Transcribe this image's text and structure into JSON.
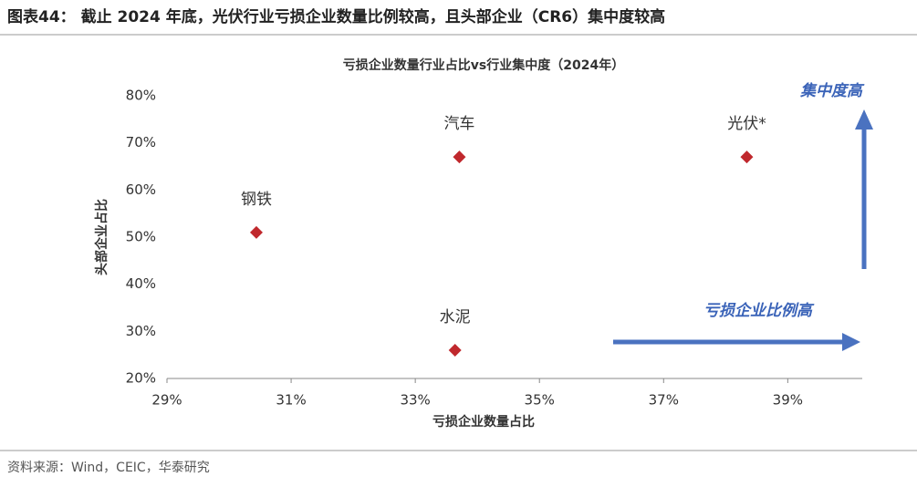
{
  "header": {
    "title": "图表44：  截止 2024 年底，光伏行业亏损企业数量比例较高，且头部企业（CR6）集中度较高"
  },
  "chart_data": {
    "type": "scatter",
    "title": "亏损企业数量行业占比vs行业集中度（2024年）",
    "x_label": "亏损企业数量占比",
    "y_label": "头部企业占比",
    "x": [
      30.44,
      33.71,
      38.34,
      33.64
    ],
    "values": [
      51,
      67,
      67,
      26
    ],
    "point_labels": [
      "钢铁",
      "汽车",
      "光伏*",
      "水泥"
    ],
    "color": "#c0282d",
    "xlim": [
      29,
      40.2
    ],
    "ylim": [
      20,
      80
    ],
    "xticks": [
      {
        "value": 29,
        "label": "29%"
      },
      {
        "value": 31,
        "label": "31%"
      },
      {
        "value": 33,
        "label": "33%"
      },
      {
        "value": 35,
        "label": "35%"
      },
      {
        "value": 37,
        "label": "37%"
      },
      {
        "value": 39,
        "label": "39%"
      }
    ],
    "yticks": [
      {
        "value": 20,
        "label": "20%"
      },
      {
        "value": 30,
        "label": "30%"
      },
      {
        "value": 40,
        "label": "40%"
      },
      {
        "value": 50,
        "label": "50%"
      },
      {
        "value": 60,
        "label": "60%"
      },
      {
        "value": 70,
        "label": "70%"
      },
      {
        "value": 80,
        "label": "80%"
      }
    ],
    "annotations": [
      "集中度高",
      "亏损企业比例高"
    ]
  },
  "source": "资料来源：Wind，CEIC，华泰研究"
}
